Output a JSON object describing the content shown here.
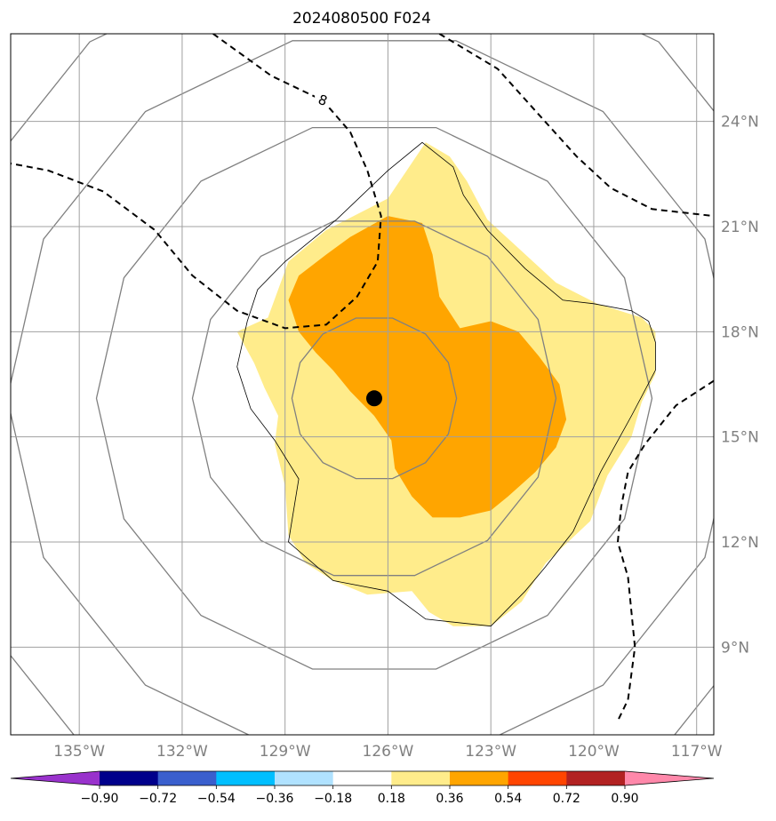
{
  "chart_data": {
    "type": "map-contour",
    "title": "2024080500 F024",
    "projection": "PlateCarree",
    "xlim": [
      -137,
      -116.5
    ],
    "ylim": [
      6.5,
      26.5
    ],
    "x_ticks": [
      -135,
      -132,
      -129,
      -126,
      -123,
      -120,
      -117
    ],
    "x_tick_labels": [
      "135°W",
      "132°W",
      "129°W",
      "126°W",
      "123°W",
      "120°W",
      "117°W"
    ],
    "y_ticks": [
      9,
      12,
      15,
      18,
      21,
      24
    ],
    "y_tick_labels": [
      "9°N",
      "12°N",
      "15°N",
      "18°N",
      "21°N",
      "24°N"
    ],
    "grid": true,
    "storm_center": {
      "lon": -126.4,
      "lat": 16.1
    },
    "filled_contours": [
      {
        "range": [
          0.18,
          0.36
        ],
        "color": "#FFEC8B",
        "polygon": [
          [
            -128.9,
            20.0
          ],
          [
            -127.8,
            20.9
          ],
          [
            -126.0,
            21.8
          ],
          [
            -124.9,
            23.4
          ],
          [
            -124.2,
            23.0
          ],
          [
            -123.7,
            22.3
          ],
          [
            -123.1,
            21.2
          ],
          [
            -122.1,
            20.3
          ],
          [
            -121.1,
            19.4
          ],
          [
            -119.9,
            18.8
          ],
          [
            -118.6,
            18.4
          ],
          [
            -118.2,
            18.0
          ],
          [
            -118.2,
            16.8
          ],
          [
            -118.6,
            16.0
          ],
          [
            -118.9,
            15.0
          ],
          [
            -119.6,
            13.9
          ],
          [
            -120.1,
            12.6
          ],
          [
            -121.4,
            11.4
          ],
          [
            -122.1,
            10.3
          ],
          [
            -123.0,
            9.6
          ],
          [
            -124.1,
            9.6
          ],
          [
            -124.8,
            10.0
          ],
          [
            -125.3,
            10.6
          ],
          [
            -126.6,
            10.5
          ],
          [
            -127.6,
            10.9
          ],
          [
            -128.4,
            11.4
          ],
          [
            -128.9,
            12.2
          ],
          [
            -129.0,
            13.6
          ],
          [
            -129.3,
            14.8
          ],
          [
            -129.2,
            15.6
          ],
          [
            -129.6,
            16.4
          ],
          [
            -129.9,
            17.1
          ],
          [
            -130.4,
            18.0
          ],
          [
            -129.5,
            18.4
          ]
        ]
      },
      {
        "range": [
          0.36,
          0.54
        ],
        "color": "#FFA500",
        "polygon": [
          [
            -127.8,
            20.2
          ],
          [
            -127.1,
            20.7
          ],
          [
            -126.0,
            21.3
          ],
          [
            -125.0,
            21.1
          ],
          [
            -124.7,
            20.2
          ],
          [
            -124.5,
            19.0
          ],
          [
            -123.9,
            18.1
          ],
          [
            -123.0,
            18.3
          ],
          [
            -122.2,
            18.0
          ],
          [
            -121.6,
            17.3
          ],
          [
            -121.0,
            16.5
          ],
          [
            -120.8,
            15.5
          ],
          [
            -121.1,
            14.7
          ],
          [
            -121.7,
            14.0
          ],
          [
            -122.5,
            13.3
          ],
          [
            -123.0,
            12.9
          ],
          [
            -123.9,
            12.7
          ],
          [
            -124.7,
            12.7
          ],
          [
            -125.3,
            13.3
          ],
          [
            -125.8,
            14.1
          ],
          [
            -125.9,
            14.9
          ],
          [
            -126.4,
            15.6
          ],
          [
            -127.1,
            16.3
          ],
          [
            -127.6,
            16.9
          ],
          [
            -128.1,
            17.4
          ],
          [
            -128.6,
            18.0
          ],
          [
            -128.9,
            18.9
          ],
          [
            -128.6,
            19.6
          ]
        ]
      }
    ],
    "contour_lines": [
      {
        "level": 8,
        "style": "dashed",
        "labeled": true,
        "label": "8",
        "points": [
          [
            -131.1,
            26.5
          ],
          [
            -129.4,
            25.3
          ],
          [
            -127.9,
            24.6
          ],
          [
            -127.1,
            23.7
          ],
          [
            -126.6,
            22.6
          ],
          [
            -126.2,
            21.3
          ],
          [
            -126.3,
            20.0
          ],
          [
            -126.9,
            19.0
          ],
          [
            -127.8,
            18.2
          ],
          [
            -129.0,
            18.1
          ],
          [
            -130.4,
            18.6
          ],
          [
            -131.7,
            19.6
          ],
          [
            -132.8,
            20.9
          ],
          [
            -134.3,
            22.0
          ],
          [
            -135.9,
            22.6
          ],
          [
            -137.0,
            22.8
          ]
        ]
      },
      {
        "level": 8,
        "style": "dashed",
        "labeled": false,
        "label": "",
        "points": [
          [
            -124.5,
            26.5
          ],
          [
            -122.8,
            25.5
          ],
          [
            -121.7,
            24.3
          ],
          [
            -120.5,
            23.0
          ],
          [
            -119.5,
            22.1
          ],
          [
            -118.3,
            21.5
          ],
          [
            -116.5,
            21.3
          ]
        ]
      },
      {
        "level": 8,
        "style": "dashed",
        "labeled": false,
        "label": "",
        "points": [
          [
            -116.5,
            16.6
          ],
          [
            -117.6,
            15.9
          ],
          [
            -118.5,
            14.8
          ],
          [
            -119.0,
            14.0
          ],
          [
            -119.2,
            13.0
          ],
          [
            -119.3,
            12.0
          ],
          [
            -119.0,
            11.0
          ],
          [
            -118.8,
            9.0
          ],
          [
            -119.0,
            7.5
          ],
          [
            -119.3,
            6.9
          ]
        ]
      }
    ],
    "range_rings": [
      {
        "radius_deg": 2.4
      },
      {
        "radius_deg": 5.3
      },
      {
        "radius_deg": 8.1
      },
      {
        "radius_deg": 10.7
      },
      {
        "radius_deg": 13.3
      }
    ],
    "outline": [
      [
        -125.0,
        23.4
      ],
      [
        -124.1,
        22.7
      ],
      [
        -123.8,
        21.9
      ],
      [
        -123.1,
        20.9
      ],
      [
        -122.0,
        19.8
      ],
      [
        -120.9,
        18.9
      ],
      [
        -120.0,
        18.8
      ],
      [
        -118.9,
        18.6
      ],
      [
        -118.4,
        18.3
      ],
      [
        -118.2,
        17.7
      ],
      [
        -118.2,
        16.9
      ],
      [
        -118.9,
        15.6
      ],
      [
        -119.8,
        14.0
      ],
      [
        -120.6,
        12.3
      ],
      [
        -121.4,
        11.3
      ],
      [
        -122.0,
        10.6
      ],
      [
        -123.0,
        9.6
      ],
      [
        -124.9,
        9.8
      ],
      [
        -126.0,
        10.6
      ],
      [
        -127.6,
        10.9
      ],
      [
        -128.9,
        12.0
      ],
      [
        -128.6,
        13.8
      ],
      [
        -129.3,
        14.9
      ],
      [
        -130.0,
        15.8
      ],
      [
        -130.4,
        17.0
      ],
      [
        -130.1,
        18.3
      ],
      [
        -129.8,
        19.2
      ],
      [
        -129.0,
        20.0
      ],
      [
        -127.5,
        21.2
      ],
      [
        -126.0,
        22.6
      ]
    ],
    "colorbar": {
      "levels": [
        "−0.90",
        "−0.72",
        "−0.54",
        "−0.36",
        "−0.18",
        "0.18",
        "0.36",
        "0.54",
        "0.72",
        "0.90"
      ],
      "colors": [
        "#9932CC",
        "#00008B",
        "#3A5FCD",
        "#00BFFF",
        "#B0E2FF",
        "#FFFFFF",
        "#FFEC8B",
        "#FFA500",
        "#FF4500",
        "#B22222",
        "#FF88AA"
      ],
      "extend": "both"
    }
  }
}
